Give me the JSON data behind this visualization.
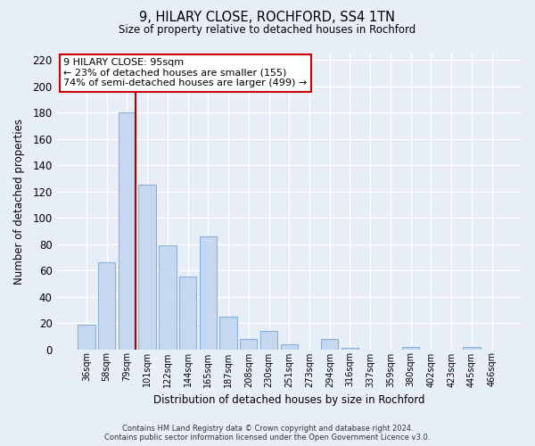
{
  "title": "9, HILARY CLOSE, ROCHFORD, SS4 1TN",
  "subtitle": "Size of property relative to detached houses in Rochford",
  "xlabel": "Distribution of detached houses by size in Rochford",
  "ylabel": "Number of detached properties",
  "bar_labels": [
    "36sqm",
    "58sqm",
    "79sqm",
    "101sqm",
    "122sqm",
    "144sqm",
    "165sqm",
    "187sqm",
    "208sqm",
    "230sqm",
    "251sqm",
    "273sqm",
    "294sqm",
    "316sqm",
    "337sqm",
    "359sqm",
    "380sqm",
    "402sqm",
    "423sqm",
    "445sqm",
    "466sqm"
  ],
  "bar_values": [
    19,
    66,
    180,
    125,
    79,
    55,
    86,
    25,
    8,
    14,
    4,
    0,
    8,
    1,
    0,
    0,
    2,
    0,
    0,
    2,
    0
  ],
  "bar_color": "#c5d8f0",
  "bar_edge_color": "#8cb0d8",
  "highlight_bar_index": 2,
  "vline_color": "#aa0000",
  "ylim": [
    0,
    225
  ],
  "yticks": [
    0,
    20,
    40,
    60,
    80,
    100,
    120,
    140,
    160,
    180,
    200,
    220
  ],
  "annotation_title": "9 HILARY CLOSE: 95sqm",
  "annotation_line1": "← 23% of detached houses are smaller (155)",
  "annotation_line2": "74% of semi-detached houses are larger (499) →",
  "annotation_box_color": "#ffffff",
  "annotation_box_edge": "#cc0000",
  "footer_line1": "Contains HM Land Registry data © Crown copyright and database right 2024.",
  "footer_line2": "Contains public sector information licensed under the Open Government Licence v3.0.",
  "background_color": "#e8eef8",
  "plot_background_color": "#e8eef8",
  "grid_color": "#ffffff"
}
